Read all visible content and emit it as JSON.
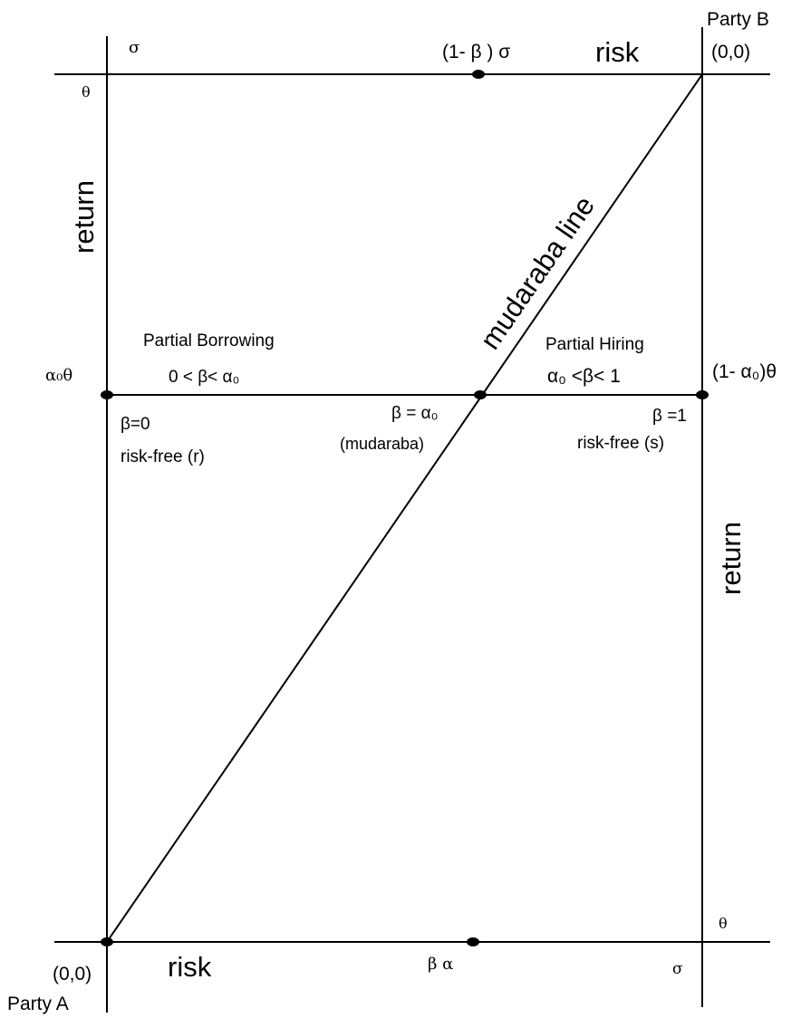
{
  "party_b": {
    "name": "Party B",
    "origin": "(0,0)"
  },
  "party_a": {
    "name": "Party A",
    "origin": "(0,0)"
  },
  "top_axis": {
    "sigma": "σ",
    "midpoint": "(1- β ) σ",
    "label": "risk"
  },
  "bottom_axis": {
    "label": "risk",
    "midpoint": "β α",
    "sigma": "σ",
    "theta": "θ"
  },
  "left_axis": {
    "theta": "θ",
    "label": "return",
    "alpha_theta": "α₀θ"
  },
  "right_axis": {
    "label": "return",
    "one_minus_alpha_theta": "(1- α₀)θ"
  },
  "diagonal": {
    "label": "mudaraba line"
  },
  "regions": {
    "borrowing": {
      "title": "Partial Borrowing",
      "range": "0 < β< α₀"
    },
    "hiring": {
      "title": "Partial Hiring",
      "range": "α₀ <β< 1"
    }
  },
  "points": {
    "left": {
      "beta": "β=0",
      "desc": "risk-free (r)"
    },
    "center": {
      "beta": "β = α₀",
      "desc": "(mudaraba)"
    },
    "right": {
      "beta": "β =1",
      "desc": "risk-free (s)"
    }
  }
}
